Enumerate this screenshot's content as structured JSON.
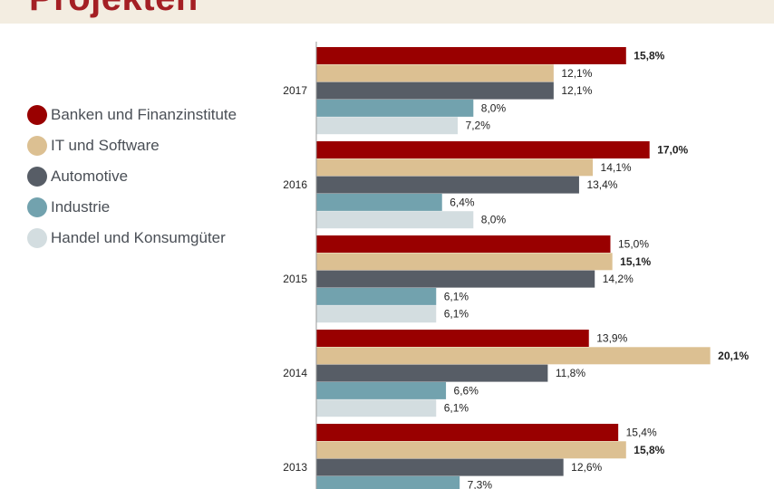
{
  "header": {
    "title": "Projekten",
    "background_color": "#f3ede1",
    "title_color": "#a41f24"
  },
  "chart_data": {
    "type": "bar",
    "orientation": "horizontal",
    "categories": [
      "2017",
      "2016",
      "2015",
      "2014",
      "2013"
    ],
    "series": [
      {
        "name": "Banken und Finanzinstitute",
        "color": "#990000",
        "values": [
          15.8,
          17.0,
          15.0,
          13.9,
          15.4
        ],
        "labels": [
          "15,8%",
          "17,0%",
          "15,0%",
          "13,9%",
          "15,4%"
        ]
      },
      {
        "name": "IT und Software",
        "color": "#dcc092",
        "values": [
          12.1,
          14.1,
          15.1,
          20.1,
          15.8
        ],
        "labels": [
          "12,1%",
          "14,1%",
          "15,1%",
          "20,1%",
          "15,8%"
        ]
      },
      {
        "name": "Automotive",
        "color": "#575d66",
        "values": [
          12.1,
          13.4,
          14.2,
          11.8,
          12.6
        ],
        "labels": [
          "12,1%",
          "13,4%",
          "14,2%",
          "11,8%",
          "12,6%"
        ]
      },
      {
        "name": "Industrie",
        "color": "#72a2ae",
        "values": [
          8.0,
          6.4,
          6.1,
          6.6,
          7.3
        ],
        "labels": [
          "8,0%",
          "6,4%",
          "6,1%",
          "6,6%",
          "7,3%"
        ]
      },
      {
        "name": "Handel und Konsumgüter",
        "color": "#d3dde0",
        "values": [
          7.2,
          8.0,
          6.1,
          6.1,
          null
        ],
        "labels": [
          "7,2%",
          "8,0%",
          "6,1%",
          "6,1%",
          ""
        ]
      }
    ],
    "bold_labels": [
      [
        "15,8%"
      ],
      [
        "17,0%"
      ],
      [
        "15,1%"
      ],
      [
        "20,1%"
      ],
      [
        "15,8%"
      ]
    ],
    "legend_position": "left",
    "grid": false
  }
}
